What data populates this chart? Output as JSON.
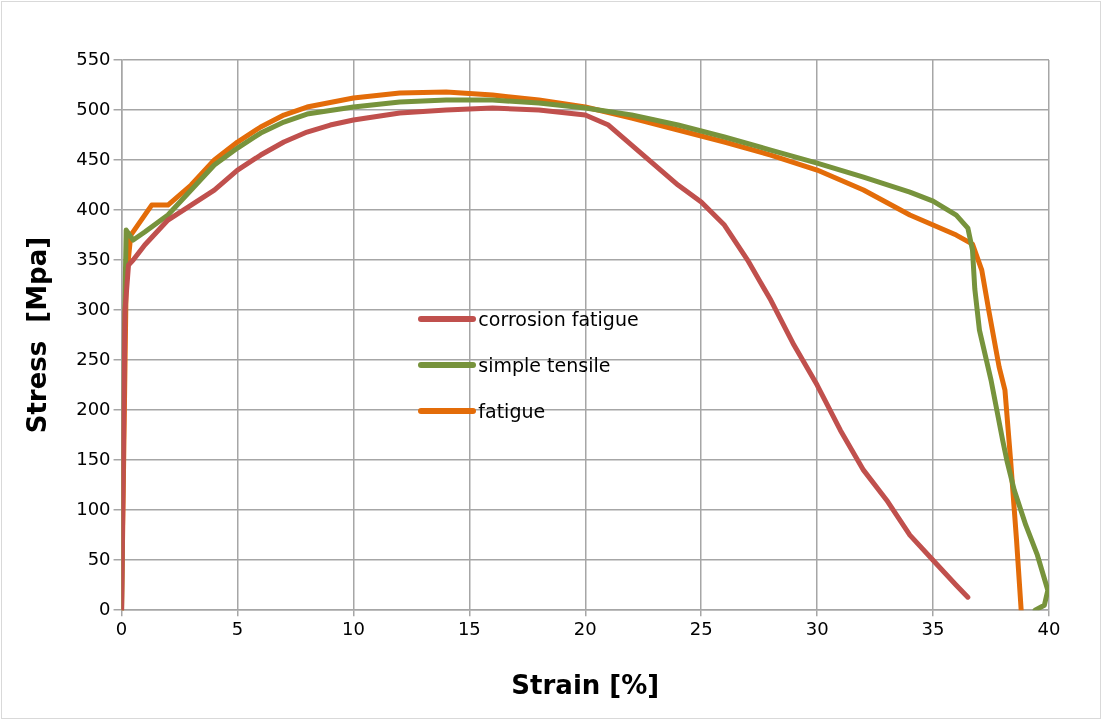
{
  "chart_data": {
    "type": "line",
    "xlabel": "Strain [%]",
    "ylabel": "Stress  [Mpa]",
    "xlim": [
      0,
      40
    ],
    "xticks": [
      0,
      5,
      10,
      15,
      20,
      25,
      30,
      35,
      40
    ],
    "ylim": [
      0,
      550
    ],
    "yticks": [
      0,
      50,
      100,
      150,
      200,
      250,
      300,
      350,
      400,
      450,
      500,
      550
    ],
    "grid": true,
    "legend": "center",
    "marker": "none",
    "line_style": "solid",
    "series": [
      {
        "name": "corrosion fatigue",
        "color": "#c0504d",
        "x": [
          0,
          0.15,
          0.3,
          0.5,
          1,
          2,
          3,
          4,
          5,
          6,
          7,
          8,
          9,
          10,
          12,
          14,
          16,
          18,
          20,
          21,
          22,
          23,
          24,
          25,
          26,
          27,
          28,
          29,
          30,
          31,
          32,
          33,
          34,
          35,
          36,
          36.5
        ],
        "values": [
          0,
          300,
          345,
          350,
          365,
          390,
          405,
          420,
          440,
          455,
          468,
          478,
          485,
          490,
          497,
          500,
          502,
          500,
          495,
          485,
          465,
          445,
          425,
          408,
          385,
          350,
          310,
          265,
          225,
          180,
          140,
          110,
          75,
          50,
          25,
          13
        ]
      },
      {
        "name": "simple tensile",
        "color": "#77933c",
        "x": [
          0,
          0.1,
          0.2,
          0.5,
          1,
          2,
          3,
          4,
          5,
          6,
          7,
          8,
          10,
          12,
          14,
          16,
          18,
          20,
          22,
          24,
          26,
          28,
          30,
          32,
          34,
          35,
          36,
          36.5,
          36.7,
          36.8,
          37,
          37.5,
          38,
          38.2,
          38.5,
          39,
          39.5,
          39.95,
          39.8,
          39.4
        ],
        "values": [
          0,
          250,
          380,
          370,
          378,
          395,
          420,
          445,
          462,
          477,
          488,
          496,
          503,
          508,
          510,
          510,
          507,
          502,
          495,
          485,
          473,
          460,
          447,
          433,
          418,
          409,
          395,
          382,
          360,
          321,
          280,
          230,
          170,
          148,
          120,
          85,
          55,
          20,
          5,
          0
        ]
      },
      {
        "name": "fatigue",
        "color": "#e36c09",
        "x": [
          0,
          0.2,
          0.4,
          1,
          1.3,
          2,
          3,
          4,
          5,
          6,
          7,
          8,
          10,
          12,
          14,
          16,
          18,
          20,
          22,
          24,
          26,
          28,
          30,
          32,
          34,
          36,
          36.7,
          37.1,
          37.4,
          37.85,
          38.1,
          38.35,
          38.6,
          38.8
        ],
        "values": [
          0,
          330,
          375,
          395,
          405,
          405,
          425,
          450,
          468,
          483,
          495,
          503,
          512,
          517,
          518,
          515,
          510,
          503,
          492,
          480,
          468,
          455,
          440,
          420,
          395,
          375,
          366,
          340,
          300,
          243,
          220,
          148,
          70,
          0
        ]
      }
    ]
  }
}
